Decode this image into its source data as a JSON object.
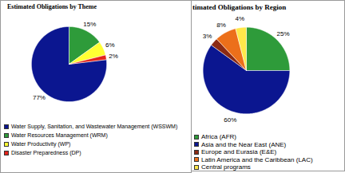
{
  "chart_data": [
    {
      "type": "pie",
      "title": "Estimated Obligations by Theme",
      "categories": [
        "Water Supply, Sanitation, and Wastewater Management (WSSWM)",
        "Water Resources Management (WRM)",
        "Water Productivity (WP)",
        "Disaster Preparedness (DP)"
      ],
      "values": [
        77,
        15,
        6,
        2
      ],
      "value_labels": [
        "77%",
        "15%",
        "6%",
        "2%"
      ],
      "colors": [
        "#0b1690",
        "#2e9b3a",
        "#ffff33",
        "#e3241b"
      ],
      "data_labels": true,
      "legend": "bottom"
    },
    {
      "type": "pie",
      "title": "timated Obligations by Region",
      "categories": [
        "Africa (AFR)",
        "Asia and the Near East (ANE)",
        "Europe and Eurasia (E&E)",
        "Latin America and the Caribbean (LAC)",
        "Central programs"
      ],
      "values": [
        25,
        60,
        3,
        8,
        4
      ],
      "value_labels": [
        "25%",
        "60%",
        "3%",
        "8%",
        "4%"
      ],
      "colors": [
        "#2e9b3a",
        "#0b1690",
        "#8b2a14",
        "#ec6f1a",
        "#ffe84a"
      ],
      "data_labels": true,
      "legend": "bottom"
    }
  ]
}
